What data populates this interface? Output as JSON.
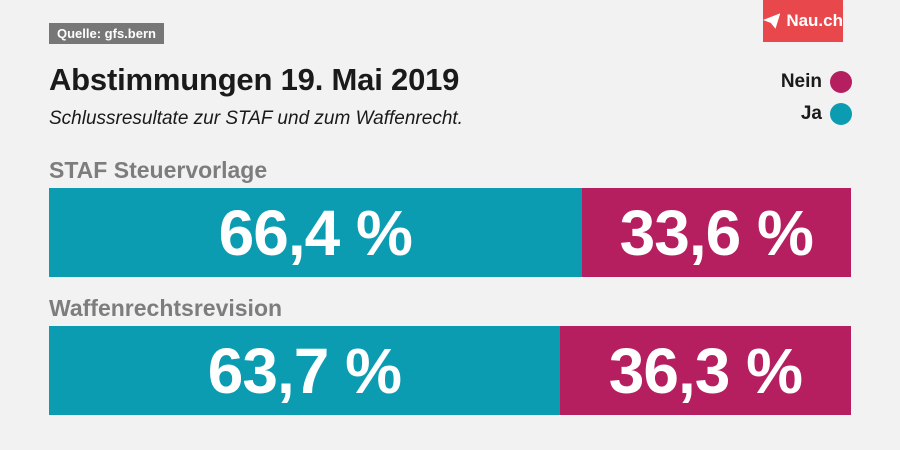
{
  "source": "Quelle: gfs.bern",
  "brand": {
    "label": "Nau.ch",
    "icon": "paper-plane-icon"
  },
  "colors": {
    "ja": "#0b9cb2",
    "nein": "#b51f5f",
    "brand": "#e8474b"
  },
  "legend": [
    {
      "label": "Nein",
      "key": "nein"
    },
    {
      "label": "Ja",
      "key": "ja"
    }
  ],
  "chart_data": {
    "type": "bar",
    "stacked": true,
    "orientation": "horizontal",
    "title": "Abstimmungen 19. Mai 2019",
    "subtitle": "Schlussresultate zur STAF und zum Waffenrecht.",
    "categories": [
      "STAF Steuervorlage",
      "Waffenrechtsrevision"
    ],
    "series": [
      {
        "name": "Ja",
        "values": [
          66.4,
          63.7
        ],
        "labels": [
          "66,4 %",
          "63,7 %"
        ]
      },
      {
        "name": "Nein",
        "values": [
          33.6,
          36.3
        ],
        "labels": [
          "33,6 %",
          "36,3 %"
        ]
      }
    ],
    "xlim": [
      0,
      100
    ],
    "legend_position": "top-right",
    "grid": false
  }
}
